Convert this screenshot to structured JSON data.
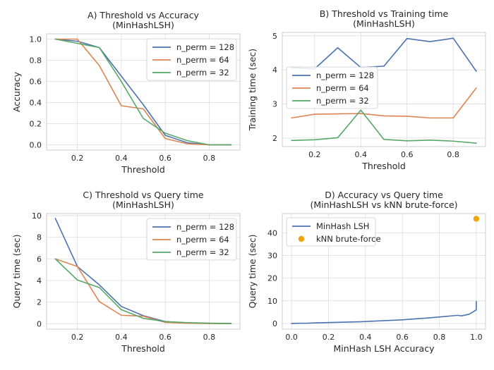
{
  "chart_data": [
    {
      "type": "line",
      "title": "A) Threshold vs Accuracy",
      "subtitle": "(MinHashLSH)",
      "xlabel": "Threshold",
      "ylabel": "Accuracy",
      "xlim": [
        0.06,
        0.94
      ],
      "ylim": [
        -0.05,
        1.05
      ],
      "xticks": [
        0.2,
        0.4,
        0.6,
        0.8
      ],
      "yticks": [
        0.0,
        0.2,
        0.4,
        0.6,
        0.8,
        1.0
      ],
      "xtick_labels": [
        "0.2",
        "0.4",
        "0.6",
        "0.8"
      ],
      "ytick_labels": [
        "0.0",
        "0.2",
        "0.4",
        "0.6",
        "0.8",
        "1.0"
      ],
      "legend_position": "top-right",
      "series": [
        {
          "name": "n_perm = 128",
          "color": "#4c72b0",
          "x": [
            0.1,
            0.2,
            0.3,
            0.4,
            0.5,
            0.6,
            0.7,
            0.8,
            0.9
          ],
          "y": [
            1.0,
            0.98,
            0.92,
            0.65,
            0.38,
            0.09,
            0.02,
            0.0,
            0.0
          ]
        },
        {
          "name": "n_perm = 64",
          "color": "#dd8452",
          "x": [
            0.1,
            0.2,
            0.3,
            0.4,
            0.5,
            0.6,
            0.7,
            0.8,
            0.9
          ],
          "y": [
            1.0,
            1.0,
            0.75,
            0.37,
            0.34,
            0.06,
            0.01,
            0.0,
            0.0
          ]
        },
        {
          "name": "n_perm = 32",
          "color": "#55a868",
          "x": [
            0.1,
            0.2,
            0.3,
            0.4,
            0.5,
            0.6,
            0.7,
            0.8,
            0.9
          ],
          "y": [
            1.0,
            0.96,
            0.92,
            0.6,
            0.25,
            0.11,
            0.04,
            0.0,
            0.0
          ]
        }
      ]
    },
    {
      "type": "line",
      "title": "B) Threshold vs Training time",
      "subtitle": "(MinHashLSH)",
      "xlabel": "Threshold",
      "ylabel": "Training time (sec)",
      "xlim": [
        0.06,
        0.94
      ],
      "ylim": [
        1.75,
        5.1
      ],
      "xticks": [
        0.2,
        0.4,
        0.6,
        0.8
      ],
      "yticks": [
        2,
        3,
        4,
        5
      ],
      "xtick_labels": [
        "0.2",
        "0.4",
        "0.6",
        "0.8"
      ],
      "ytick_labels": [
        "2",
        "3",
        "4",
        "5"
      ],
      "legend_position": "center-left",
      "series": [
        {
          "name": "n_perm = 128",
          "color": "#4c72b0",
          "x": [
            0.1,
            0.2,
            0.3,
            0.4,
            0.5,
            0.6,
            0.7,
            0.8,
            0.9
          ],
          "y": [
            4.07,
            4.03,
            4.65,
            4.07,
            4.11,
            4.92,
            4.83,
            4.93,
            3.96
          ]
        },
        {
          "name": "n_perm = 64",
          "color": "#dd8452",
          "x": [
            0.1,
            0.2,
            0.3,
            0.4,
            0.5,
            0.6,
            0.7,
            0.8,
            0.9
          ],
          "y": [
            2.59,
            2.7,
            2.71,
            2.72,
            2.65,
            2.64,
            2.59,
            2.59,
            3.47
          ]
        },
        {
          "name": "n_perm = 32",
          "color": "#55a868",
          "x": [
            0.1,
            0.2,
            0.3,
            0.4,
            0.5,
            0.6,
            0.7,
            0.8,
            0.9
          ],
          "y": [
            1.93,
            1.95,
            2.01,
            2.82,
            1.96,
            1.92,
            1.94,
            1.91,
            1.85
          ]
        }
      ]
    },
    {
      "type": "line",
      "title": "C) Threshold vs Query time",
      "subtitle": "(MinHashLSH)",
      "xlabel": "Threshold",
      "ylabel": "Query time (sec)",
      "xlim": [
        0.06,
        0.94
      ],
      "ylim": [
        -0.5,
        10.2
      ],
      "xticks": [
        0.2,
        0.4,
        0.6,
        0.8
      ],
      "yticks": [
        0,
        2,
        4,
        6,
        8,
        10
      ],
      "xtick_labels": [
        "0.2",
        "0.4",
        "0.6",
        "0.8"
      ],
      "ytick_labels": [
        "0",
        "2",
        "4",
        "6",
        "8",
        "10"
      ],
      "legend_position": "top-right",
      "series": [
        {
          "name": "n_perm = 128",
          "color": "#4c72b0",
          "x": [
            0.1,
            0.2,
            0.3,
            0.4,
            0.5,
            0.6,
            0.7,
            0.8,
            0.9
          ],
          "y": [
            9.75,
            5.3,
            3.6,
            1.6,
            0.75,
            0.2,
            0.08,
            0.03,
            0.02
          ]
        },
        {
          "name": "n_perm = 64",
          "color": "#dd8452",
          "x": [
            0.1,
            0.2,
            0.3,
            0.4,
            0.5,
            0.6,
            0.7,
            0.8,
            0.9
          ],
          "y": [
            6.0,
            5.3,
            2.05,
            0.78,
            0.7,
            0.12,
            0.05,
            0.02,
            0.02
          ]
        },
        {
          "name": "n_perm = 32",
          "color": "#55a868",
          "x": [
            0.1,
            0.2,
            0.3,
            0.4,
            0.5,
            0.6,
            0.7,
            0.8,
            0.9
          ],
          "y": [
            6.0,
            4.05,
            3.35,
            1.3,
            0.5,
            0.2,
            0.1,
            0.05,
            0.02
          ]
        }
      ]
    },
    {
      "type": "line",
      "title": "D) Accuracy vs Query time",
      "subtitle": "(MinHashLSH vs kNN brute-force)",
      "xlabel": "MinHash LSH Accuracy",
      "ylabel": "Query time (sec)",
      "xlim": [
        -0.05,
        1.05
      ],
      "ylim": [
        -2.5,
        48.5
      ],
      "xticks": [
        0.0,
        0.2,
        0.4,
        0.6,
        0.8,
        1.0
      ],
      "yticks": [
        0,
        10,
        20,
        30,
        40
      ],
      "xtick_labels": [
        "0.0",
        "0.2",
        "0.4",
        "0.6",
        "0.8",
        "1.0"
      ],
      "ytick_labels": [
        "0",
        "10",
        "20",
        "30",
        "40"
      ],
      "legend_position": "top-left",
      "series": [
        {
          "name": "MinHash LSH",
          "color": "#4c72b0",
          "kind": "line",
          "x": [
            0.0,
            0.01,
            0.02,
            0.04,
            0.09,
            0.11,
            0.25,
            0.37,
            0.6,
            0.65,
            0.75,
            0.9,
            0.92,
            0.96,
            0.98,
            1.0,
            1.0,
            1.0
          ],
          "y": [
            0.02,
            0.02,
            0.05,
            0.08,
            0.12,
            0.2,
            0.5,
            0.75,
            1.6,
            1.9,
            2.5,
            3.6,
            3.35,
            4.05,
            5.0,
            6.0,
            9.75,
            6.0
          ]
        },
        {
          "name": "kNN brute-force",
          "color": "#f0a30a",
          "kind": "scatter",
          "x": [
            1.0
          ],
          "y": [
            46.2
          ]
        }
      ]
    }
  ]
}
